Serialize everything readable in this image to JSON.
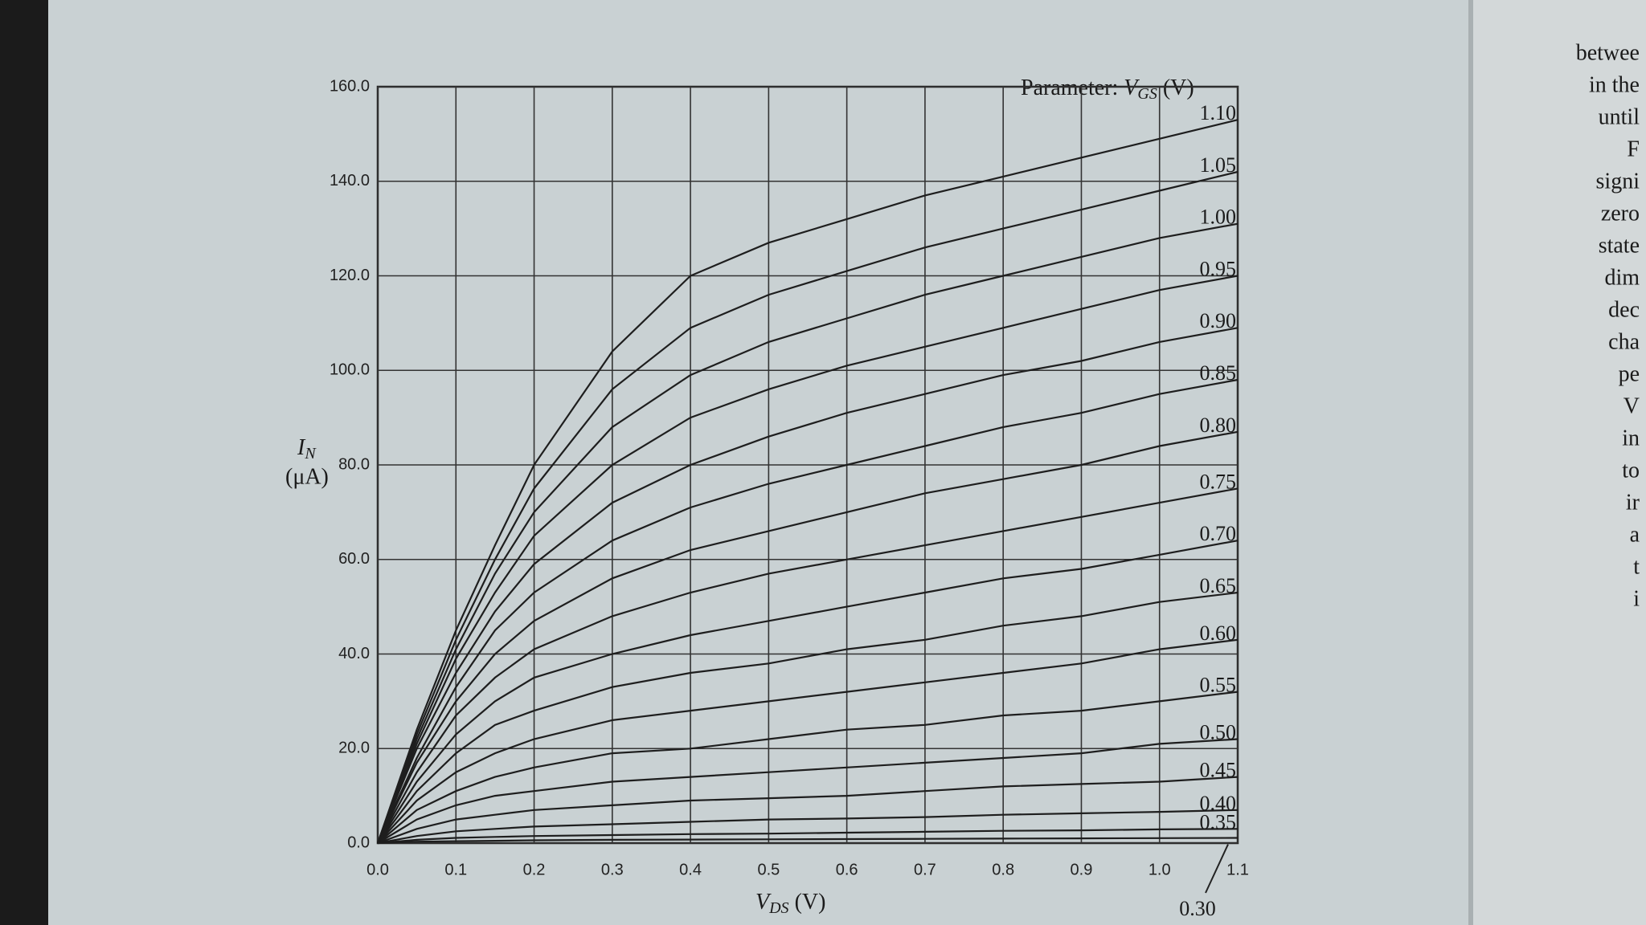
{
  "chart_data": {
    "type": "line",
    "legend_title": {
      "prefix": "Parameter:",
      "symbol": "V",
      "sub": "GS",
      "unit": "(V)"
    },
    "xlabel": {
      "symbol": "V",
      "sub": "DS",
      "unit": "(V)"
    },
    "ylabel": {
      "symbol": "I",
      "sub": "N",
      "unit": "(μA)"
    },
    "x": [
      0,
      0.05,
      0.1,
      0.15,
      0.2,
      0.3,
      0.4,
      0.5,
      0.6,
      0.7,
      0.8,
      0.9,
      1.0,
      1.1
    ],
    "xlim": [
      0,
      1.1
    ],
    "xticks": [
      {
        "value": 0,
        "label": "0.0"
      },
      0.1,
      0.2,
      0.3,
      0.4,
      0.5,
      0.6,
      0.7,
      0.8,
      0.9,
      {
        "value": 1,
        "label": "1.0"
      },
      1.1
    ],
    "ylim": [
      0,
      160
    ],
    "yticks": [
      {
        "value": 0,
        "label": "0.0"
      },
      {
        "value": 20,
        "label": "20.0"
      },
      {
        "value": 40,
        "label": "40.0"
      },
      {
        "value": 60,
        "label": "60.0"
      },
      {
        "value": 80,
        "label": "80.0"
      },
      {
        "value": 100,
        "label": "100.0"
      },
      {
        "value": 120,
        "label": "120.0"
      },
      {
        "value": 140,
        "label": "140.0"
      },
      {
        "value": 160,
        "label": "160.0"
      }
    ],
    "grid": true,
    "color": "#1e1e1e",
    "series": [
      {
        "name": "1.10",
        "values": [
          0,
          24,
          45,
          63,
          80,
          104,
          120,
          127,
          132,
          137,
          141,
          145,
          149,
          153
        ]
      },
      {
        "name": "1.05",
        "values": [
          0,
          23,
          43,
          60,
          75,
          96,
          109,
          116,
          121,
          126,
          130,
          134,
          138,
          142
        ]
      },
      {
        "name": "1.00",
        "values": [
          0,
          22,
          41,
          57,
          70,
          88,
          99,
          106,
          111,
          116,
          120,
          124,
          128,
          131
        ]
      },
      {
        "name": "0.95",
        "values": [
          0,
          21,
          39,
          53,
          65,
          80,
          90,
          96,
          101,
          105,
          109,
          113,
          117,
          120
        ]
      },
      {
        "name": "0.90",
        "values": [
          0,
          20,
          36,
          49,
          59,
          72,
          80,
          86,
          91,
          95,
          99,
          102,
          106,
          109
        ]
      },
      {
        "name": "0.85",
        "values": [
          0,
          18,
          33,
          45,
          53,
          64,
          71,
          76,
          80,
          84,
          88,
          91,
          95,
          98
        ]
      },
      {
        "name": "0.80",
        "values": [
          0,
          17,
          30,
          40,
          47,
          56,
          62,
          66,
          70,
          74,
          77,
          80,
          84,
          87
        ]
      },
      {
        "name": "0.75",
        "values": [
          0,
          15,
          27,
          35,
          41,
          48,
          53,
          57,
          60,
          63,
          66,
          69,
          72,
          75
        ]
      },
      {
        "name": "0.70",
        "values": [
          0,
          13,
          23,
          30,
          35,
          40,
          44,
          47,
          50,
          53,
          56,
          58,
          61,
          64
        ]
      },
      {
        "name": "0.65",
        "values": [
          0,
          11,
          19,
          25,
          28,
          33,
          36,
          38,
          41,
          43,
          46,
          48,
          51,
          53
        ]
      },
      {
        "name": "0.60",
        "values": [
          0,
          9,
          15,
          19,
          22,
          26,
          28,
          30,
          32,
          34,
          36,
          38,
          41,
          43
        ]
      },
      {
        "name": "0.55",
        "values": [
          0,
          7,
          11,
          14,
          16,
          19,
          20,
          22,
          24,
          25,
          27,
          28,
          30,
          32
        ]
      },
      {
        "name": "0.50",
        "values": [
          0,
          5,
          8,
          10,
          11,
          13,
          14,
          15,
          16,
          17,
          18,
          19,
          21,
          22
        ]
      },
      {
        "name": "0.45",
        "values": [
          0,
          3,
          5,
          6,
          7,
          8,
          9,
          9.5,
          10,
          11,
          12,
          12.5,
          13,
          14
        ]
      },
      {
        "name": "0.40",
        "values": [
          0,
          1.5,
          2.5,
          3,
          3.5,
          4,
          4.5,
          5,
          5.2,
          5.5,
          6,
          6.3,
          6.6,
          7
        ]
      },
      {
        "name": "0.35",
        "values": [
          0,
          0.7,
          1.1,
          1.3,
          1.5,
          1.7,
          1.9,
          2,
          2.2,
          2.4,
          2.6,
          2.7,
          2.9,
          3
        ]
      },
      {
        "name": "0.30",
        "values": [
          0,
          0.3,
          0.4,
          0.5,
          0.6,
          0.7,
          0.75,
          0.8,
          0.85,
          0.9,
          0.95,
          1,
          1.05,
          1.1
        ]
      }
    ]
  },
  "margin_text": [
    "betwee",
    "in the",
    "until",
    "F",
    "signi",
    "zero",
    "state",
    "dim",
    "dec",
    "cha",
    "pe",
    "V",
    "in",
    "to",
    "ir",
    "a",
    "t",
    "i"
  ]
}
